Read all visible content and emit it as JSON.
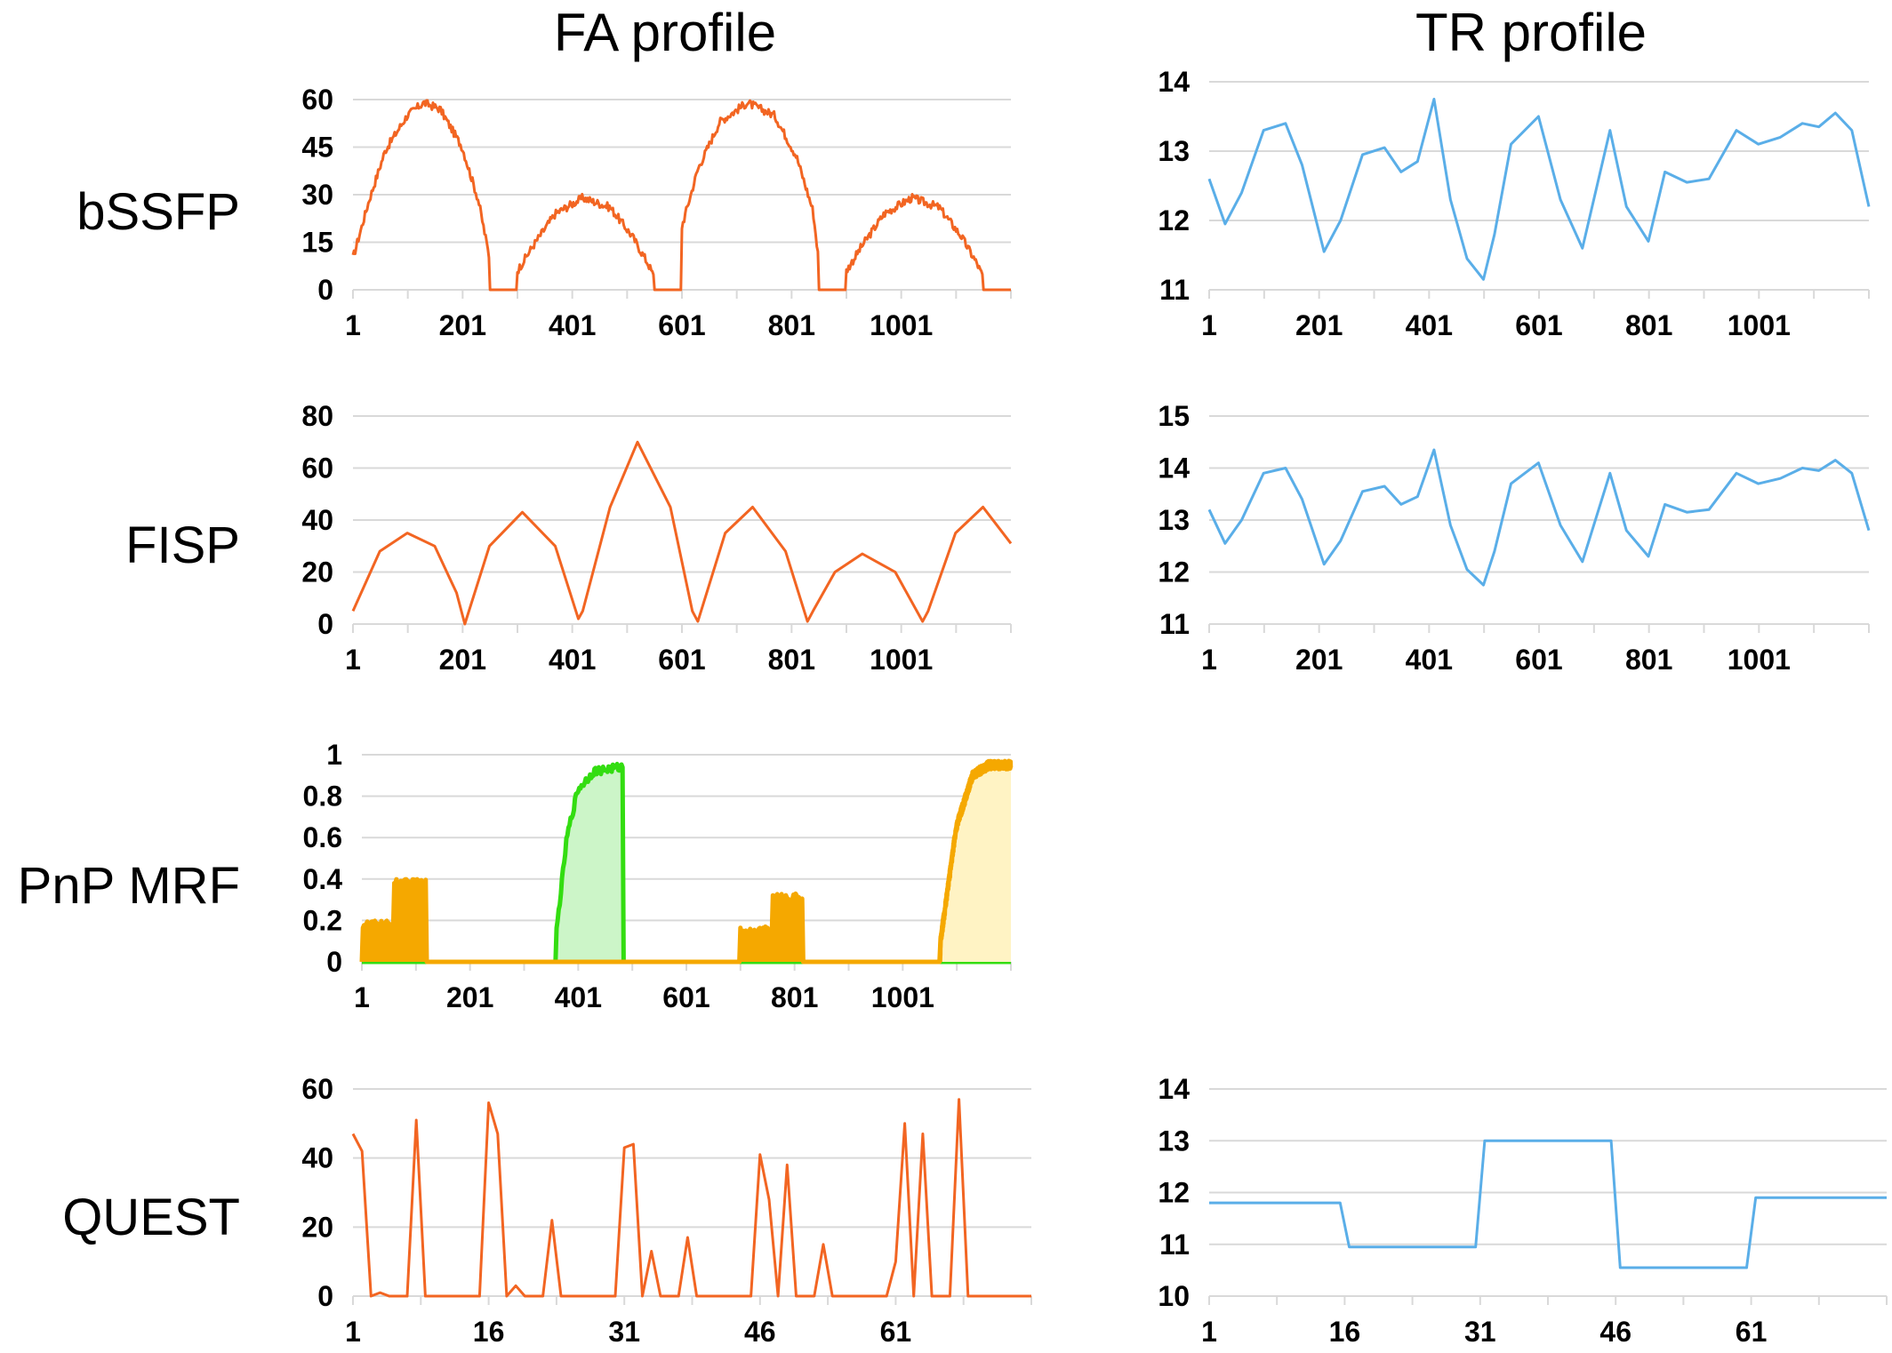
{
  "columns": {
    "fa_title": "FA profile",
    "tr_title": "TR profile"
  },
  "rows": {
    "r0": "bSSFP",
    "r1": "FISP",
    "r2": "PnP MRF",
    "r3": "QUEST"
  },
  "colors": {
    "fa": "#F26522",
    "tr": "#5AAEE8",
    "green": "#33DD11",
    "green_fill": "#CCF5C8",
    "orange": "#F5A800",
    "orange_fill": "#FFF3C4",
    "grid": "#D9D9D9"
  },
  "chart_data": [
    {
      "id": "bssfp-fa",
      "type": "line",
      "color": "fa",
      "noise": 1.3,
      "ylim": [
        0,
        60
      ],
      "yticks": [
        "0",
        "15",
        "30",
        "45",
        "60"
      ],
      "xlim": [
        1,
        1201
      ],
      "xticks": [
        "1",
        "201",
        "401",
        "601",
        "801",
        "1001"
      ],
      "series": [
        {
          "x": [
            1,
            30,
            60,
            100,
            130,
            160,
            200,
            230,
            250,
            251,
            300,
            301,
            330,
            370,
            420,
            470,
            510,
            540,
            550,
            551,
            600,
            601,
            630,
            670,
            720,
            770,
            810,
            840,
            850,
            851,
            900,
            901,
            930,
            970,
            1020,
            1070,
            1110,
            1140,
            1150,
            1151,
            1201
          ],
          "y": [
            10,
            28,
            44,
            55,
            59,
            57,
            45,
            28,
            10,
            0,
            0,
            6,
            14,
            24,
            29,
            26,
            17,
            8,
            4,
            0,
            0,
            20,
            38,
            53,
            59,
            55,
            42,
            25,
            10,
            0,
            0,
            6,
            14,
            24,
            29,
            26,
            17,
            8,
            4,
            0,
            0
          ]
        }
      ]
    },
    {
      "id": "bssfp-tr",
      "type": "line",
      "color": "tr",
      "ylim": [
        11,
        14
      ],
      "yticks": [
        "11",
        "12",
        "13",
        "14"
      ],
      "xlim": [
        1,
        1201
      ],
      "xticks": [
        "1",
        "201",
        "401",
        "601",
        "801",
        "1001"
      ],
      "series": [
        {
          "x": [
            1,
            30,
            60,
            100,
            140,
            170,
            210,
            240,
            280,
            320,
            350,
            380,
            410,
            440,
            470,
            500,
            520,
            550,
            600,
            640,
            680,
            730,
            760,
            800,
            830,
            870,
            910,
            960,
            1000,
            1040,
            1080,
            1110,
            1140,
            1170,
            1201
          ],
          "y": [
            12.6,
            11.95,
            12.4,
            13.3,
            13.4,
            12.8,
            11.55,
            12.0,
            12.95,
            13.05,
            12.7,
            12.85,
            13.75,
            12.3,
            11.45,
            11.15,
            11.8,
            13.1,
            13.5,
            12.3,
            11.6,
            13.3,
            12.2,
            11.7,
            12.7,
            12.55,
            12.6,
            13.3,
            13.1,
            13.2,
            13.4,
            13.35,
            13.55,
            13.3,
            12.2
          ]
        }
      ]
    },
    {
      "id": "fisp-fa",
      "type": "line",
      "color": "fa",
      "ylim": [
        0,
        80
      ],
      "yticks": [
        "0",
        "20",
        "40",
        "60",
        "80"
      ],
      "xlim": [
        1,
        1201
      ],
      "xticks": [
        "1",
        "201",
        "401",
        "601",
        "801",
        "1001"
      ],
      "series": [
        {
          "x": [
            1,
            50,
            100,
            150,
            190,
            205,
            250,
            310,
            370,
            412,
            420,
            470,
            520,
            580,
            620,
            630,
            680,
            730,
            790,
            830,
            840,
            880,
            930,
            990,
            1040,
            1050,
            1100,
            1150,
            1201
          ],
          "y": [
            5,
            28,
            35,
            30,
            12,
            0,
            30,
            43,
            30,
            2,
            5,
            45,
            70,
            45,
            5,
            1,
            35,
            45,
            28,
            1,
            5,
            20,
            27,
            20,
            1,
            5,
            35,
            45,
            31
          ]
        }
      ]
    },
    {
      "id": "fisp-tr",
      "type": "line",
      "color": "tr",
      "ylim": [
        11,
        15
      ],
      "yticks": [
        "11",
        "12",
        "13",
        "14",
        "15"
      ],
      "xlim": [
        1,
        1201
      ],
      "xticks": [
        "1",
        "201",
        "401",
        "601",
        "801",
        "1001"
      ],
      "series": [
        {
          "x": [
            1,
            30,
            60,
            100,
            140,
            170,
            210,
            240,
            280,
            320,
            350,
            380,
            410,
            440,
            470,
            500,
            520,
            550,
            600,
            640,
            680,
            730,
            760,
            800,
            830,
            870,
            910,
            960,
            1000,
            1040,
            1080,
            1110,
            1140,
            1170,
            1201
          ],
          "y": [
            13.2,
            12.55,
            13.0,
            13.9,
            14.0,
            13.4,
            12.15,
            12.6,
            13.55,
            13.65,
            13.3,
            13.45,
            14.35,
            12.9,
            12.05,
            11.75,
            12.4,
            13.7,
            14.1,
            12.9,
            12.2,
            13.9,
            12.8,
            12.3,
            13.3,
            13.15,
            13.2,
            13.9,
            13.7,
            13.8,
            14.0,
            13.95,
            14.15,
            13.9,
            12.8
          ]
        }
      ]
    },
    {
      "id": "pnp-fa",
      "type": "area",
      "noise": 0.02,
      "ylim": [
        0,
        1
      ],
      "yticks": [
        "0",
        "0.2",
        "0.4",
        "0.6",
        "0.8",
        "1"
      ],
      "xlim": [
        1,
        1201
      ],
      "xticks": [
        "1",
        "201",
        "401",
        "601",
        "801",
        "1001"
      ],
      "series": [
        {
          "name": "",
          "color": "green",
          "fill": "green_fill",
          "x": [
            1,
            360,
            361,
            380,
            400,
            430,
            480,
            484,
            485,
            1201
          ],
          "y": [
            0,
            0,
            0.15,
            0.6,
            0.83,
            0.92,
            0.94,
            0.94,
            0,
            0
          ]
        },
        {
          "name": "",
          "color": "orange",
          "fill": "orange",
          "x": [
            1,
            2,
            60,
            61,
            120,
            121,
            700,
            701,
            760,
            761,
            815,
            816,
            1070,
            1071,
            1100,
            1130,
            1160,
            1201
          ],
          "y": [
            0,
            0.18,
            0.18,
            0.38,
            0.38,
            0,
            0,
            0.15,
            0.15,
            0.31,
            0.31,
            0,
            0,
            0.1,
            0.65,
            0.9,
            0.95,
            0.95
          ]
        },
        {
          "name": "",
          "color": "orange",
          "fill": "orange_fill",
          "x": [
            1070,
            1071,
            1100,
            1130,
            1160,
            1201
          ],
          "y": [
            0,
            0.1,
            0.65,
            0.9,
            0.95,
            0.95
          ]
        }
      ]
    },
    {
      "id": "quest-fa",
      "type": "line",
      "color": "fa",
      "ylim": [
        0,
        60
      ],
      "yticks": [
        "0",
        "20",
        "40",
        "60"
      ],
      "xlim": [
        1,
        76
      ],
      "xticks": [
        "1",
        "16",
        "31",
        "46",
        "61"
      ],
      "series": [
        {
          "x": [
            1,
            2,
            3,
            4,
            5,
            6,
            7,
            8,
            9,
            10,
            11,
            12,
            13,
            14,
            15,
            16,
            17,
            18,
            19,
            20,
            21,
            22,
            23,
            24,
            25,
            26,
            27,
            28,
            29,
            30,
            31,
            32,
            33,
            34,
            35,
            36,
            37,
            38,
            39,
            40,
            41,
            42,
            43,
            44,
            45,
            46,
            47,
            48,
            49,
            50,
            51,
            52,
            53,
            54,
            55,
            56,
            57,
            58,
            59,
            60,
            61,
            62,
            63,
            64,
            65,
            66,
            67,
            68,
            69,
            70,
            71,
            72,
            73,
            74,
            75,
            76
          ],
          "y": [
            47,
            42,
            0,
            1,
            0,
            0,
            0,
            51,
            0,
            0,
            0,
            0,
            0,
            0,
            0,
            56,
            47,
            0,
            3,
            0,
            0,
            0,
            22,
            0,
            0,
            0,
            0,
            0,
            0,
            0,
            43,
            44,
            0,
            13,
            0,
            0,
            0,
            17,
            0,
            0,
            0,
            0,
            0,
            0,
            0,
            41,
            28,
            0,
            38,
            0,
            0,
            0,
            15,
            0,
            0,
            0,
            0,
            0,
            0,
            0,
            10,
            50,
            0,
            47,
            0,
            0,
            0,
            57,
            0,
            0,
            0,
            0,
            0,
            0,
            0,
            0
          ]
        }
      ]
    },
    {
      "id": "quest-tr",
      "type": "line",
      "color": "tr",
      "ylim": [
        10,
        14
      ],
      "yticks": [
        "10",
        "11",
        "12",
        "13",
        "14"
      ],
      "xlim": [
        1,
        76
      ],
      "xticks": [
        "1",
        "16",
        "31",
        "46",
        "61"
      ],
      "series": [
        {
          "x": [
            1,
            15.5,
            16.5,
            30.5,
            31.5,
            45.5,
            46.5,
            60.5,
            61.5,
            76
          ],
          "y": [
            11.8,
            11.8,
            10.95,
            10.95,
            13.0,
            13.0,
            10.55,
            10.55,
            11.9,
            11.9
          ]
        }
      ]
    }
  ]
}
